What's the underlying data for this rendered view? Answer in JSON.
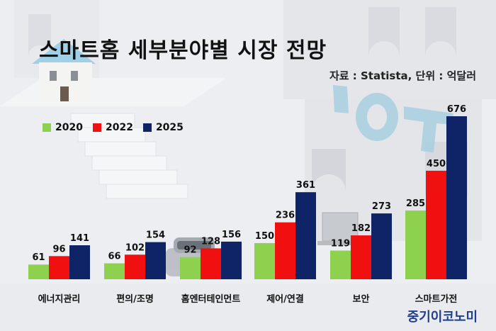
{
  "header": {
    "title": "스마트홈 세부분야별 시장 전망",
    "source": "자료 : Statista, 단위 : 억달러"
  },
  "brand": "중기이코노미",
  "colors": {
    "series_2020": "#8ed14f",
    "series_2022": "#f01010",
    "series_2025": "#0f2466"
  },
  "chart_data": {
    "type": "bar",
    "categories": [
      "에너지관리",
      "편의/조명",
      "홈엔터테인먼트",
      "제어/연결",
      "보안",
      "스마트가전"
    ],
    "series": [
      {
        "name": "2020",
        "values": [
          61,
          66,
          92,
          150,
          119,
          285
        ]
      },
      {
        "name": "2022",
        "values": [
          96,
          102,
          128,
          236,
          182,
          450
        ]
      },
      {
        "name": "2025",
        "values": [
          141,
          154,
          156,
          361,
          273,
          676
        ]
      }
    ],
    "legend": "top-left",
    "unit": "억달러"
  }
}
